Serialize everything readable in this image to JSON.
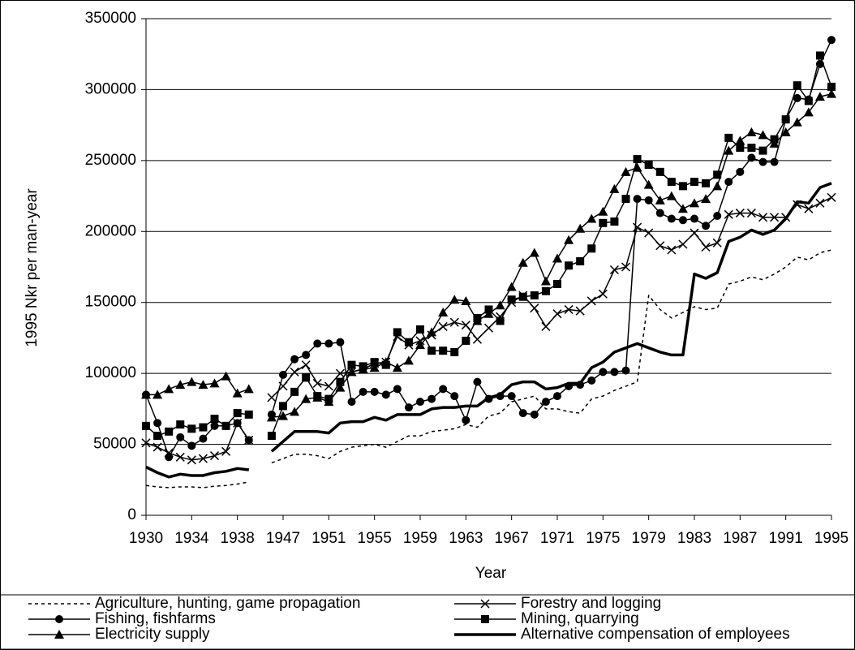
{
  "chart_data": {
    "type": "line",
    "xlabel": "Year",
    "ylabel": "1995 Nkr per man-year",
    "categories": [
      1930,
      null,
      null,
      null,
      1934,
      null,
      null,
      null,
      1938,
      null,
      null,
      null,
      1947,
      null,
      null,
      null,
      1951,
      null,
      null,
      null,
      1955,
      null,
      null,
      null,
      1959,
      null,
      null,
      null,
      1963,
      null,
      null,
      null,
      1967,
      null,
      null,
      null,
      1971,
      null,
      null,
      null,
      1975,
      null,
      null,
      null,
      1979,
      null,
      null,
      null,
      1983,
      null,
      null,
      null,
      1987,
      null,
      null,
      null,
      1991,
      null,
      null,
      null,
      1995
    ],
    "ylim": [
      0,
      350000
    ],
    "yticks": [
      0,
      50000,
      100000,
      150000,
      200000,
      250000,
      300000,
      350000
    ],
    "grid": true,
    "legend": "bottom",
    "series": [
      {
        "name": "Agriculture, hunting, game propagation",
        "color": "#000000",
        "style": "dotted",
        "marker": "none",
        "width": 1.5,
        "values": [
          21000,
          20000,
          19500,
          20000,
          20000,
          19500,
          20500,
          21000,
          22000,
          23500,
          null,
          37000,
          40000,
          43000,
          43000,
          42000,
          40000,
          45000,
          48000,
          49000,
          50000,
          48000,
          52000,
          56000,
          56000,
          59000,
          60000,
          61000,
          64000,
          62000,
          70000,
          72000,
          80000,
          82000,
          84000,
          75000,
          75000,
          73000,
          72000,
          82000,
          84000,
          88000,
          91000,
          94000,
          155000,
          145000,
          139000,
          143000,
          147000,
          145000,
          146000,
          163000,
          165000,
          168000,
          166000,
          170000,
          175000,
          182000,
          180000,
          185000,
          187000
        ]
      },
      {
        "name": "Forestry and logging",
        "color": "#000000",
        "style": "solid",
        "marker": "x",
        "width": 1.5,
        "values": [
          51000,
          48000,
          44000,
          41000,
          39000,
          40000,
          42000,
          45000,
          65000,
          53000,
          null,
          83000,
          91000,
          101000,
          106000,
          93000,
          91000,
          100000,
          101000,
          103000,
          107000,
          108000,
          126000,
          120000,
          123000,
          127000,
          133000,
          136000,
          134000,
          124000,
          132000,
          140000,
          150000,
          155000,
          146000,
          133000,
          142000,
          145000,
          144000,
          151000,
          156000,
          173000,
          175000,
          203000,
          199000,
          190000,
          187000,
          191000,
          199000,
          189000,
          192000,
          212000,
          213000,
          213000,
          210000,
          210000,
          210000,
          219000,
          216000,
          220000,
          224000
        ]
      },
      {
        "name": "Fishing, fishfarms",
        "color": "#000000",
        "style": "solid",
        "marker": "circle",
        "width": 1.5,
        "values": [
          85000,
          65000,
          41000,
          55000,
          49000,
          54000,
          63000,
          63000,
          65000,
          53000,
          null,
          71000,
          99000,
          110000,
          113000,
          121000,
          121000,
          122000,
          80000,
          87000,
          87000,
          85000,
          89000,
          76000,
          80000,
          82000,
          89000,
          84000,
          67000,
          94000,
          82000,
          84000,
          84000,
          72000,
          71000,
          80000,
          84000,
          91000,
          92000,
          95000,
          101000,
          101000,
          102000,
          223000,
          222000,
          213000,
          209000,
          208000,
          209000,
          204000,
          211000,
          235000,
          242000,
          252000,
          249000,
          249000,
          279000,
          294000,
          293000,
          318000,
          335000
        ]
      },
      {
        "name": "Mining, quarrying",
        "color": "#000000",
        "style": "solid",
        "marker": "square",
        "width": 1.5,
        "values": [
          63000,
          56000,
          59000,
          64000,
          61000,
          62000,
          68000,
          63000,
          72000,
          71000,
          null,
          56000,
          77000,
          87000,
          97000,
          84000,
          82000,
          94000,
          106000,
          105000,
          108000,
          106000,
          129000,
          122000,
          131000,
          116000,
          116000,
          115000,
          123000,
          139000,
          145000,
          137000,
          152000,
          154000,
          155000,
          158000,
          163000,
          176000,
          179000,
          188000,
          206000,
          207000,
          223000,
          251000,
          247000,
          242000,
          235000,
          232000,
          235000,
          234000,
          240000,
          266000,
          259000,
          259000,
          257000,
          265000,
          279000,
          303000,
          292000,
          324000,
          302000
        ]
      },
      {
        "name": "Electricity supply",
        "color": "#000000",
        "style": "solid",
        "marker": "triangle",
        "width": 1.5,
        "values": [
          85000,
          85000,
          89000,
          92000,
          94000,
          92000,
          93000,
          98000,
          86000,
          89000,
          null,
          69000,
          70000,
          73000,
          82000,
          83000,
          80000,
          90000,
          101000,
          103000,
          104000,
          108000,
          104000,
          109000,
          120000,
          129000,
          143000,
          152000,
          151000,
          137000,
          142000,
          148000,
          161000,
          178000,
          185000,
          165000,
          181000,
          194000,
          202000,
          209000,
          214000,
          230000,
          242000,
          245000,
          233000,
          222000,
          225000,
          216000,
          220000,
          223000,
          232000,
          257000,
          264000,
          270000,
          268000,
          262000,
          270000,
          277000,
          284000,
          295000,
          297000
        ]
      },
      {
        "name": "Alternative compensation of employees",
        "color": "#000000",
        "style": "solid",
        "marker": "none",
        "width": 3.5,
        "values": [
          34000,
          30000,
          27000,
          29000,
          28000,
          28000,
          30000,
          31000,
          33000,
          32000,
          null,
          45000,
          52000,
          59000,
          59000,
          59000,
          58000,
          65000,
          66000,
          66000,
          69000,
          67000,
          71000,
          71000,
          71000,
          75000,
          76000,
          76000,
          77000,
          77000,
          83000,
          85000,
          92000,
          94000,
          94000,
          89000,
          90000,
          93000,
          93000,
          104000,
          108000,
          115000,
          118000,
          121000,
          118000,
          115000,
          113000,
          113000,
          170000,
          167000,
          171000,
          193000,
          196000,
          201000,
          198000,
          201000,
          209000,
          221000,
          220000,
          231000,
          234000
        ]
      }
    ]
  }
}
